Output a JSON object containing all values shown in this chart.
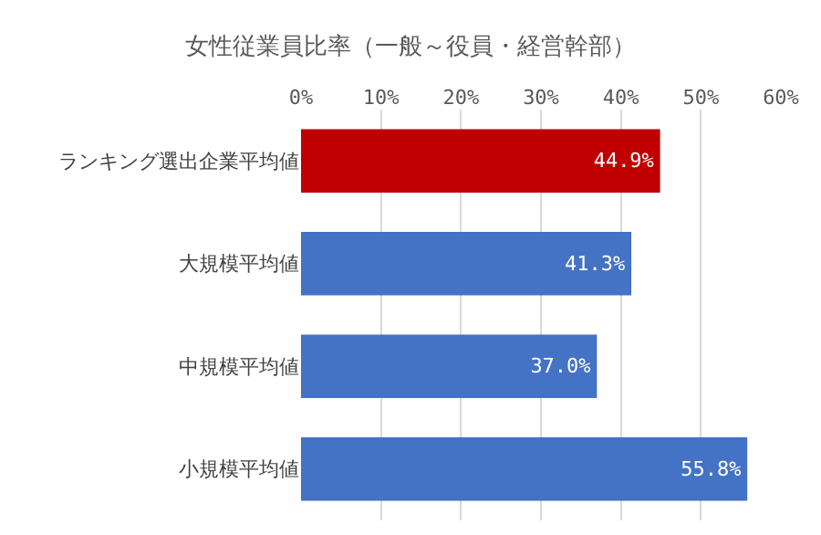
{
  "chart_data": {
    "type": "bar",
    "orientation": "horizontal",
    "title": "女性従業員比率（一般～役員・経営幹部）",
    "categories": [
      "ランキング選出企業平均値",
      "大規模平均値",
      "中規模平均値",
      "小規模平均値"
    ],
    "values": [
      44.9,
      41.3,
      37.0,
      55.8
    ],
    "colors": [
      "#c00000",
      "#4472c4",
      "#4472c4",
      "#4472c4"
    ],
    "value_labels": [
      "44.9%",
      "41.3%",
      "37.0%",
      "55.8%"
    ],
    "xlim": [
      0,
      60
    ],
    "xticks": [
      {
        "value": 0,
        "label": "0%"
      },
      {
        "value": 10,
        "label": "10%"
      },
      {
        "value": 20,
        "label": "20%"
      },
      {
        "value": 30,
        "label": "30%"
      },
      {
        "value": 40,
        "label": "40%"
      },
      {
        "value": 50,
        "label": "50%"
      },
      {
        "value": 60,
        "label": "60%"
      }
    ],
    "grid": "x"
  }
}
